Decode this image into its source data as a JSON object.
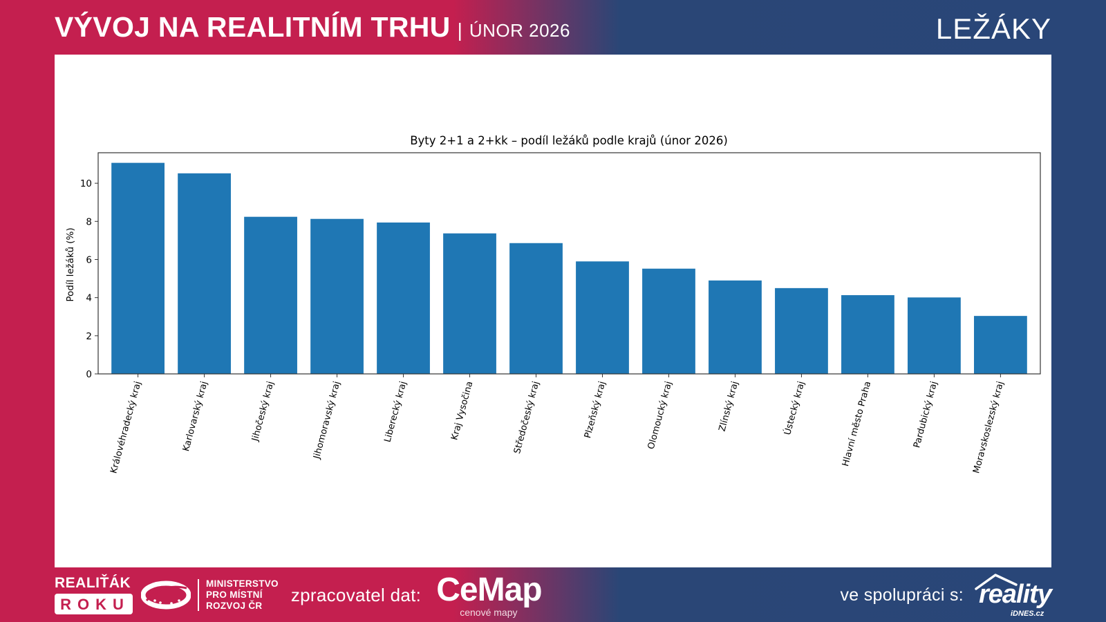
{
  "header": {
    "title": "VÝVOJ NA REALITNÍM TRHU",
    "separator": "|",
    "subtitle": "ÚNOR 2026",
    "section": "LEŽÁKY"
  },
  "footer": {
    "realitak_top": "REALIŤÁK",
    "realitak_box": "ROKU",
    "ministry_lines": [
      "MINISTERSTVO",
      "PRO MÍSTNÍ",
      "ROZVOJ ČR"
    ],
    "processor_label": "zpracovatel dat:",
    "cemap_name": "CeMap",
    "cemap_tagline": "cenové mapy",
    "partner_label": "ve spolupráci s:",
    "partner_name": "reality",
    "partner_sub": "iDNES.cz"
  },
  "colors": {
    "brand_red": "#c41f4f",
    "brand_blue": "#294678",
    "bar": "#1f77b4"
  },
  "chart_data": {
    "type": "bar",
    "title": "Byty 2+1 a 2+kk – podíl ležáků podle krajů (únor 2026)",
    "xlabel": "",
    "ylabel": "Podíl ležáků (%)",
    "ylim": [
      0,
      11.6
    ],
    "yticks": [
      0,
      2,
      4,
      6,
      8,
      10
    ],
    "grid": false,
    "categories": [
      "Královéhradecký kraj",
      "Karlovarský kraj",
      "Jihočeský kraj",
      "Jihomoravský kraj",
      "Liberecký kraj",
      "Kraj Vysočina",
      "Středočeský kraj",
      "Plzeňský kraj",
      "Olomoucký kraj",
      "Zlínský kraj",
      "Ústecký kraj",
      "Hlavní město Praha",
      "Pardubický kraj",
      "Moravskoslezský kraj"
    ],
    "values": [
      11.07,
      10.52,
      8.24,
      8.13,
      7.94,
      7.37,
      6.86,
      5.9,
      5.52,
      4.9,
      4.5,
      4.13,
      4.01,
      3.04
    ]
  }
}
